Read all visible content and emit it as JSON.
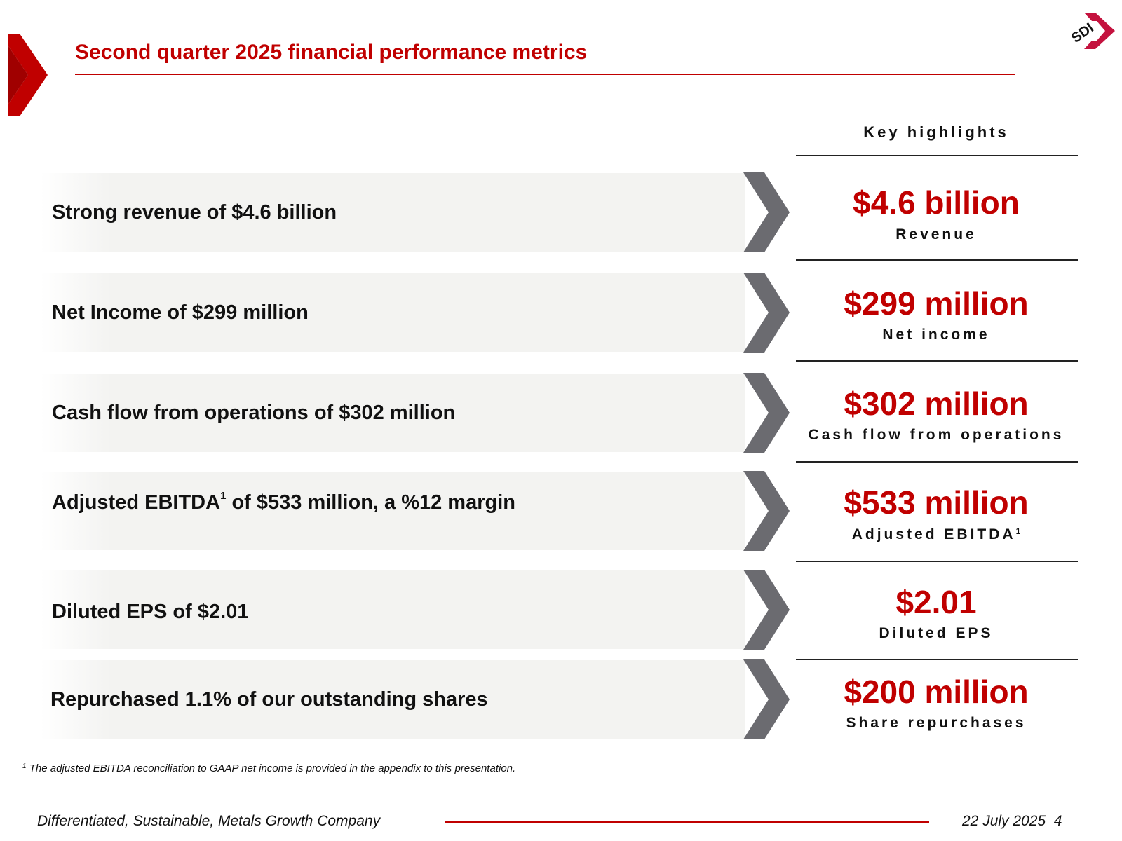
{
  "header": {
    "title": "Second quarter 2025 financial performance metrics",
    "logo_text": "SDI",
    "accent_color": "#c00000"
  },
  "key_highlights": {
    "heading": "Key highlights"
  },
  "rows": [
    {
      "text": "Strong revenue of $4.6 billion",
      "value": "$4.6 billion",
      "label": "Revenue"
    },
    {
      "text": "Net Income of $299 million",
      "value": "$299 million",
      "label": "Net income"
    },
    {
      "text": "Cash flow from operations of $302 million",
      "value": "$302 million",
      "label": "Cash flow from operations"
    },
    {
      "text_before": "Adjusted EBITDA",
      "text_sup": "1",
      "text_after": " of $533 million, a %12 margin",
      "value": "$533 million",
      "label": "Adjusted EBITDA",
      "label_sup": "1"
    },
    {
      "text": "Diluted EPS of $2.01",
      "value": "$2.01",
      "label": "Diluted EPS"
    },
    {
      "text": "Repurchased 1.1% of our outstanding shares",
      "value": "$200 million",
      "label": "Share repurchases"
    }
  ],
  "footnote": {
    "marker": "1",
    "text": " The adjusted EBITDA reconciliation to GAAP net income is provided in the appendix to this presentation."
  },
  "footer": {
    "tagline": "Differentiated, Sustainable, Metals Growth Company",
    "date": "22 July 2025",
    "page_number": "4"
  }
}
